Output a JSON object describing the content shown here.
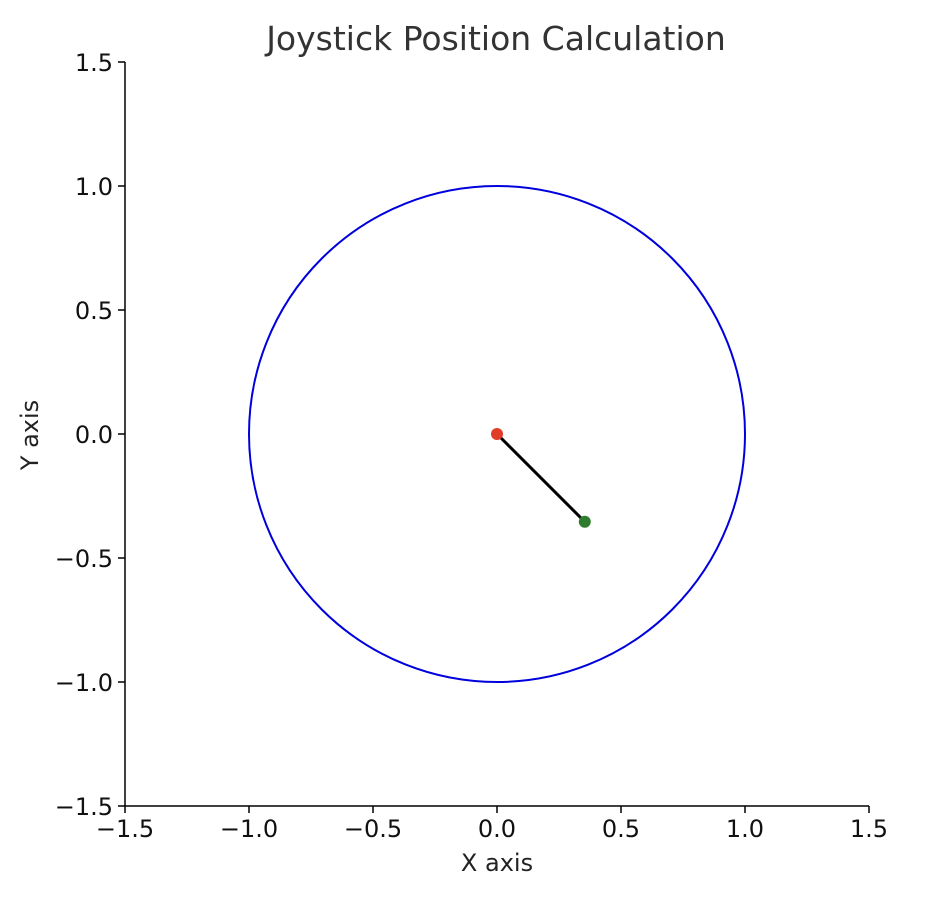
{
  "chart_data": {
    "type": "scatter",
    "title": "Joystick Position Calculation",
    "xlabel": "X axis",
    "ylabel": "Y axis",
    "xlim": [
      -1.5,
      1.5
    ],
    "ylim": [
      -1.5,
      1.5
    ],
    "x_ticks": [
      -1.5,
      -1.0,
      -0.5,
      0.0,
      0.5,
      1.0,
      1.5
    ],
    "y_ticks": [
      -1.5,
      -1.0,
      -0.5,
      0.0,
      0.5,
      1.0,
      1.5
    ],
    "x_tick_labels": [
      "−1.5",
      "−1.0",
      "−0.5",
      "0.0",
      "0.5",
      "1.0",
      "1.5"
    ],
    "y_tick_labels": [
      "−1.5",
      "−1.0",
      "−0.5",
      "0.0",
      "0.5",
      "1.0",
      "1.5"
    ],
    "grid": false,
    "boundary_circle": {
      "center": [
        0.0,
        0.0
      ],
      "radius": 1.0,
      "color": "#0000dd"
    },
    "center_point": {
      "x": 0.0,
      "y": 0.0,
      "color": "#e03c28"
    },
    "joystick_point": {
      "x": 0.354,
      "y": -0.354,
      "color": "#2e7d2e"
    },
    "vector_line": {
      "from": [
        0.0,
        0.0
      ],
      "to": [
        0.354,
        -0.354
      ],
      "color": "#000000"
    }
  }
}
